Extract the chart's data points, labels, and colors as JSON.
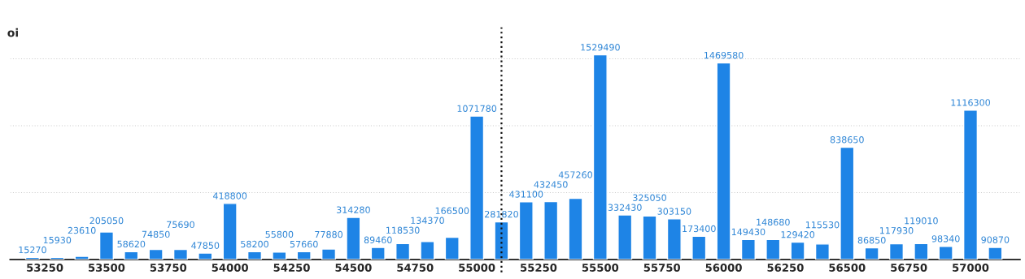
{
  "chart_data": {
    "type": "bar",
    "title": "oi",
    "x": [
      53200,
      53300,
      53400,
      53500,
      53600,
      53700,
      53800,
      53900,
      54000,
      54100,
      54200,
      54300,
      54400,
      54500,
      54600,
      54700,
      54800,
      54900,
      55000,
      55100,
      55200,
      55300,
      55400,
      55500,
      55600,
      55700,
      55800,
      55900,
      56000,
      56100,
      56200,
      56300,
      56400,
      56500,
      56600,
      56700,
      56800,
      56900,
      57000,
      57100
    ],
    "values": [
      15270,
      15930,
      23610,
      205050,
      58620,
      74850,
      75690,
      47850,
      418800,
      58200,
      55800,
      57660,
      77880,
      314280,
      89460,
      118530,
      134370,
      166500,
      1071780,
      281820,
      431100,
      432450,
      457260,
      1529490,
      332430,
      325050,
      303150,
      173400,
      1469580,
      149430,
      148680,
      129420,
      115530,
      838650,
      86850,
      117930,
      119010,
      98340,
      1116300,
      90870
    ],
    "color": "#1e84e6",
    "data_labels": true,
    "xlim": [
      53110,
      57200
    ],
    "xticks": [
      53250,
      53500,
      53750,
      54000,
      54250,
      54500,
      54750,
      55000,
      55250,
      55500,
      55750,
      56000,
      56250,
      56500,
      56750,
      57000
    ],
    "yticks": [
      {
        "value": 500000,
        "label": null
      },
      {
        "value": 1000000,
        "label": null
      },
      {
        "value": 1500000,
        "label": null
      }
    ],
    "tick_labels": "x",
    "grid": "y",
    "ref_lines": [
      {
        "axis": "x",
        "value": 55100,
        "color": "#111111",
        "line_style": "dotted"
      }
    ]
  }
}
